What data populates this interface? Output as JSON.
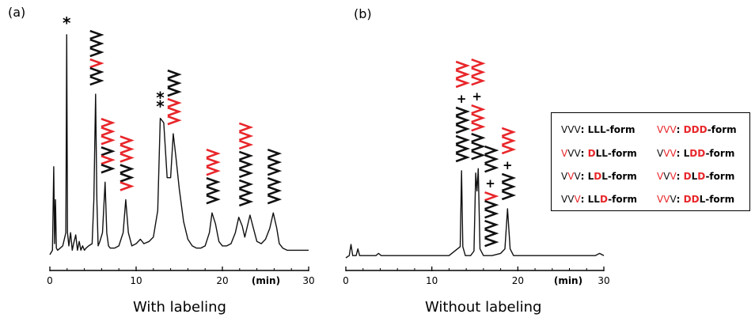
{
  "colors": {
    "red": "#e8262a",
    "black": "#111111"
  },
  "chart_data": [
    {
      "type": "line",
      "panel_label": "(a)",
      "title": "With labeling",
      "xlabel": "(min)",
      "x_ticks": [
        0,
        10,
        20,
        30
      ],
      "xlim": [
        0,
        30
      ],
      "series": [
        {
          "name": "chromatogram (with labeling)",
          "x": [
            0.0,
            0.3,
            0.45,
            0.55,
            0.65,
            0.75,
            0.9,
            1.2,
            1.5,
            1.85,
            1.95,
            2.05,
            2.2,
            2.4,
            2.6,
            2.75,
            3.0,
            3.2,
            3.4,
            3.6,
            3.8,
            4.0,
            4.2,
            4.5,
            4.9,
            5.1,
            5.3,
            5.45,
            5.6,
            5.8,
            6.1,
            6.4,
            6.6,
            6.8,
            7.0,
            7.5,
            8.0,
            8.5,
            8.8,
            9.1,
            9.5,
            10.0,
            10.5,
            10.9,
            11.5,
            12.0,
            12.5,
            12.8,
            13.2,
            13.6,
            14.0,
            14.3,
            14.6,
            15.0,
            15.5,
            16.0,
            16.5,
            17.0,
            17.5,
            18.0,
            18.5,
            18.8,
            19.2,
            19.6,
            20.0,
            20.5,
            21.0,
            21.5,
            21.9,
            22.3,
            22.6,
            22.9,
            23.2,
            23.6,
            24.0,
            24.5,
            25.0,
            25.5,
            25.9,
            26.3,
            26.6,
            27.0,
            27.5,
            28.0,
            29.0,
            30.0
          ],
          "y": [
            0.0,
            0.02,
            0.4,
            0.05,
            0.25,
            0.03,
            0.02,
            0.03,
            0.04,
            0.1,
            1.0,
            0.1,
            0.04,
            0.1,
            0.02,
            0.05,
            0.09,
            0.02,
            0.06,
            0.02,
            0.04,
            0.02,
            0.03,
            0.04,
            0.05,
            0.25,
            0.73,
            0.25,
            0.04,
            0.06,
            0.1,
            0.33,
            0.1,
            0.04,
            0.03,
            0.03,
            0.04,
            0.1,
            0.25,
            0.1,
            0.04,
            0.05,
            0.07,
            0.05,
            0.06,
            0.08,
            0.2,
            0.62,
            0.6,
            0.35,
            0.35,
            0.55,
            0.45,
            0.3,
            0.15,
            0.07,
            0.04,
            0.03,
            0.03,
            0.04,
            0.1,
            0.19,
            0.14,
            0.06,
            0.04,
            0.04,
            0.05,
            0.1,
            0.17,
            0.13,
            0.08,
            0.13,
            0.18,
            0.12,
            0.06,
            0.05,
            0.07,
            0.12,
            0.19,
            0.12,
            0.05,
            0.03,
            0.02,
            0.02,
            0.02,
            0.02
          ]
        }
      ],
      "annotations": [
        {
          "x": 1.95,
          "symbols": [
            "*"
          ]
        },
        {
          "x": 5.3,
          "stack": [
            [
              "k",
              "k",
              "k"
            ],
            [
              "r",
              "k",
              "k"
            ]
          ]
        },
        {
          "x": 6.6,
          "stack": [
            [
              "r",
              "r",
              "r"
            ],
            [
              "k",
              "r",
              "k"
            ]
          ]
        },
        {
          "x": 8.8,
          "stack": [
            [
              "r",
              "r",
              "r"
            ],
            [
              "k",
              "k",
              "r"
            ]
          ]
        },
        {
          "x": 12.8,
          "symbols": [
            "*",
            "*"
          ]
        },
        {
          "x": 14.3,
          "stack": [
            [
              "k",
              "k",
              "k"
            ],
            [
              "r",
              "r",
              "r"
            ]
          ]
        },
        {
          "x": 18.8,
          "stack": [
            [
              "r",
              "r",
              "r"
            ],
            [
              "k",
              "k",
              "k"
            ]
          ]
        },
        {
          "x": 22.6,
          "stack": [
            [
              "r",
              "r",
              "r"
            ],
            [
              "k",
              "k",
              "k"
            ],
            [
              "k",
              "k",
              "k"
            ]
          ]
        },
        {
          "x": 25.9,
          "stack": [
            [
              "k",
              "k",
              "k"
            ],
            [
              "k",
              "k",
              "k"
            ]
          ]
        }
      ]
    },
    {
      "type": "line",
      "panel_label": "(b)",
      "title": "Without labeling",
      "xlabel": "(min)",
      "x_ticks": [
        0,
        10,
        20,
        30
      ],
      "xlim": [
        0,
        30
      ],
      "series": [
        {
          "name": "chromatogram (without labeling)",
          "x": [
            0.0,
            0.4,
            0.6,
            0.8,
            1.2,
            1.4,
            1.6,
            2.5,
            3.5,
            3.8,
            4.1,
            6.0,
            8.0,
            10.0,
            12.0,
            13.3,
            13.45,
            13.6,
            13.9,
            14.5,
            14.9,
            15.1,
            15.25,
            15.4,
            15.6,
            16.0,
            17.0,
            18.0,
            18.5,
            18.8,
            19.1,
            19.5,
            20.0,
            25.0,
            28.0,
            29.0,
            29.5,
            30.0
          ],
          "y": [
            0.0,
            0.01,
            0.06,
            0.01,
            0.01,
            0.04,
            0.01,
            0.01,
            0.01,
            0.02,
            0.01,
            0.01,
            0.01,
            0.01,
            0.01,
            0.05,
            0.39,
            0.05,
            0.01,
            0.01,
            0.03,
            0.38,
            0.3,
            0.4,
            0.04,
            0.01,
            0.01,
            0.02,
            0.04,
            0.22,
            0.04,
            0.01,
            0.01,
            0.01,
            0.01,
            0.01,
            0.02,
            0.01
          ]
        }
      ],
      "annotations": [
        {
          "x": 13.45,
          "stack": [
            [
              "r",
              "r",
              "r"
            ],
            [
              "+"
            ],
            [
              "k",
              "k",
              "k"
            ],
            [
              "k",
              "k",
              "k"
            ]
          ]
        },
        {
          "x": 15.25,
          "stack": [
            [
              "r",
              "r",
              "r"
            ],
            [
              "+"
            ],
            [
              "r",
              "r",
              "r"
            ],
            [
              "k",
              "k",
              "k"
            ]
          ]
        },
        {
          "x": 16.8,
          "stack": [
            [
              "k",
              "k",
              "k"
            ],
            [
              "+"
            ],
            [
              "r",
              "k",
              "k"
            ],
            [
              "k",
              "k",
              "k"
            ]
          ]
        },
        {
          "x": 18.8,
          "stack": [
            [
              "r",
              "r",
              "r"
            ],
            [
              "+"
            ],
            [
              "k",
              "k",
              "k"
            ]
          ]
        }
      ]
    }
  ],
  "legend": {
    "items": [
      {
        "code": [
          [
            "V",
            "k"
          ],
          [
            "V",
            "k"
          ],
          [
            "V",
            "k"
          ]
        ],
        "suffix": [
          [
            "L",
            "k"
          ],
          [
            "L",
            "k"
          ],
          [
            "L",
            "k"
          ]
        ],
        "form": "-form"
      },
      {
        "code": [
          [
            "V",
            "r"
          ],
          [
            "V",
            "r"
          ],
          [
            "V",
            "r"
          ]
        ],
        "suffix": [
          [
            "D",
            "r"
          ],
          [
            "D",
            "r"
          ],
          [
            "D",
            "r"
          ]
        ],
        "form": "-form"
      },
      {
        "code": [
          [
            "V",
            "r"
          ],
          [
            "V",
            "k"
          ],
          [
            "V",
            "k"
          ]
        ],
        "suffix": [
          [
            "D",
            "r"
          ],
          [
            "L",
            "k"
          ],
          [
            "L",
            "k"
          ]
        ],
        "form": "-form"
      },
      {
        "code": [
          [
            "V",
            "k"
          ],
          [
            "V",
            "r"
          ],
          [
            "V",
            "r"
          ]
        ],
        "suffix": [
          [
            "L",
            "k"
          ],
          [
            "D",
            "r"
          ],
          [
            "D",
            "r"
          ]
        ],
        "form": "-form"
      },
      {
        "code": [
          [
            "V",
            "k"
          ],
          [
            "V",
            "r"
          ],
          [
            "V",
            "k"
          ]
        ],
        "suffix": [
          [
            "L",
            "k"
          ],
          [
            "D",
            "r"
          ],
          [
            "L",
            "k"
          ]
        ],
        "form": "-form"
      },
      {
        "code": [
          [
            "V",
            "r"
          ],
          [
            "V",
            "k"
          ],
          [
            "V",
            "r"
          ]
        ],
        "suffix": [
          [
            "D",
            "r"
          ],
          [
            "L",
            "k"
          ],
          [
            "D",
            "r"
          ]
        ],
        "form": "-form"
      },
      {
        "code": [
          [
            "V",
            "k"
          ],
          [
            "V",
            "k"
          ],
          [
            "V",
            "r"
          ]
        ],
        "suffix": [
          [
            "L",
            "k"
          ],
          [
            "L",
            "k"
          ],
          [
            "D",
            "r"
          ]
        ],
        "form": "-form"
      },
      {
        "code": [
          [
            "V",
            "r"
          ],
          [
            "V",
            "r"
          ],
          [
            "V",
            "k"
          ]
        ],
        "suffix": [
          [
            "D",
            "r"
          ],
          [
            "D",
            "r"
          ],
          [
            "L",
            "k"
          ]
        ],
        "form": "-form"
      }
    ],
    "separator": ": "
  }
}
